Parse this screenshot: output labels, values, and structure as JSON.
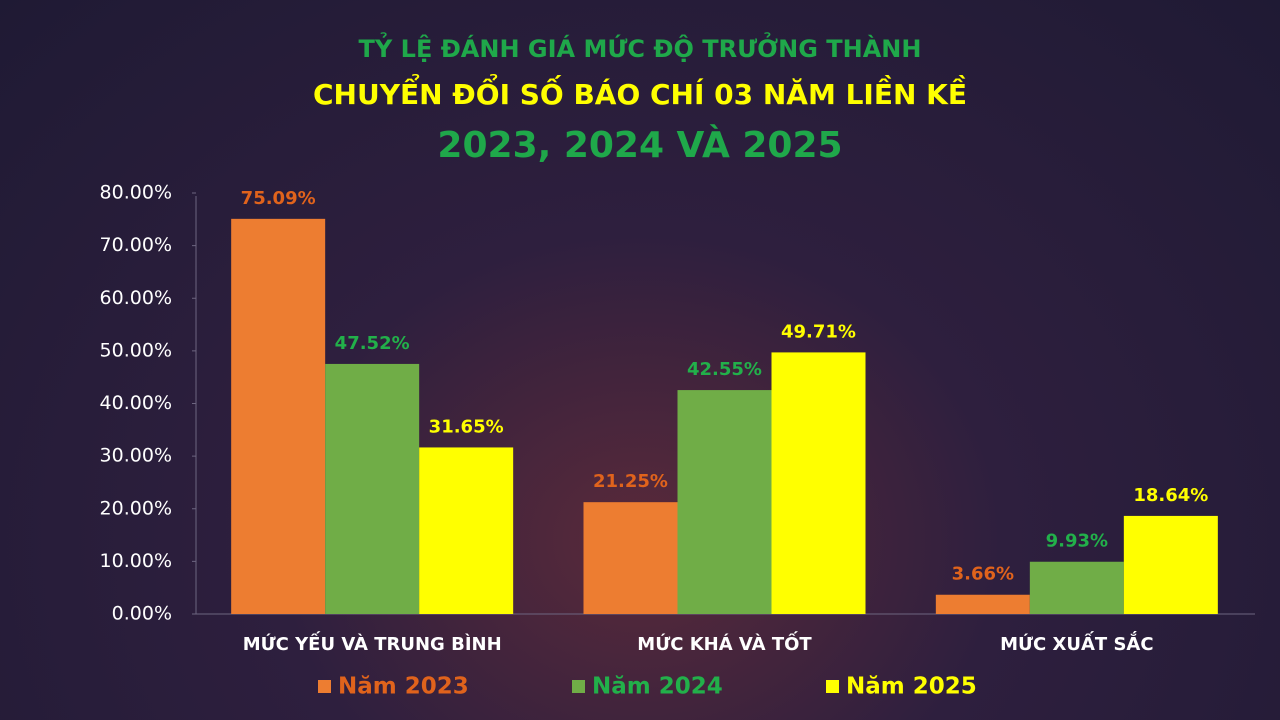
{
  "chart_data": {
    "type": "bar",
    "title_lines": [
      "TỶ LỆ ĐÁNH GIÁ MỨC ĐỘ TRƯỞNG THÀNH",
      "CHUYỂN ĐỔI SỐ BÁO CHÍ 03 NĂM LIỀN KỀ",
      "2023, 2024 VÀ 2025"
    ],
    "title_colors": [
      "#1fa84a",
      "#ffff00",
      "#1fa84a"
    ],
    "categories": [
      "MỨC YẾU VÀ TRUNG BÌNH",
      "MỨC KHÁ VÀ TỐT",
      "MỨC XUẤT SẮC"
    ],
    "series": [
      {
        "name": "Năm 2023",
        "color": "#ed7d31",
        "label_color": "#e0631c",
        "values": [
          75.09,
          21.25,
          3.66
        ],
        "value_labels": [
          "75.09%",
          "21.25%",
          "3.66%"
        ]
      },
      {
        "name": "Năm 2024",
        "color": "#70ad47",
        "label_color": "#22b04a",
        "values": [
          47.52,
          42.55,
          9.93
        ],
        "value_labels": [
          "47.52%",
          "42.55%",
          "9.93%"
        ]
      },
      {
        "name": "Năm 2025",
        "color": "#ffff00",
        "label_color": "#ffff00",
        "values": [
          31.65,
          49.71,
          18.64
        ],
        "value_labels": [
          "31.65%",
          "49.71%",
          "18.64%"
        ]
      }
    ],
    "ylim": [
      0,
      80
    ],
    "yticks": [
      {
        "value": 0,
        "label": "0.00%"
      },
      {
        "value": 10,
        "label": "10.00%"
      },
      {
        "value": 20,
        "label": "20.00%"
      },
      {
        "value": 30,
        "label": "30.00%"
      },
      {
        "value": 40,
        "label": "40.00%"
      },
      {
        "value": 50,
        "label": "50.00%"
      },
      {
        "value": 60,
        "label": "60.00%"
      },
      {
        "value": 70,
        "label": "70.00%"
      },
      {
        "value": 80,
        "label": "80.00%"
      }
    ],
    "legend": "bottom"
  }
}
